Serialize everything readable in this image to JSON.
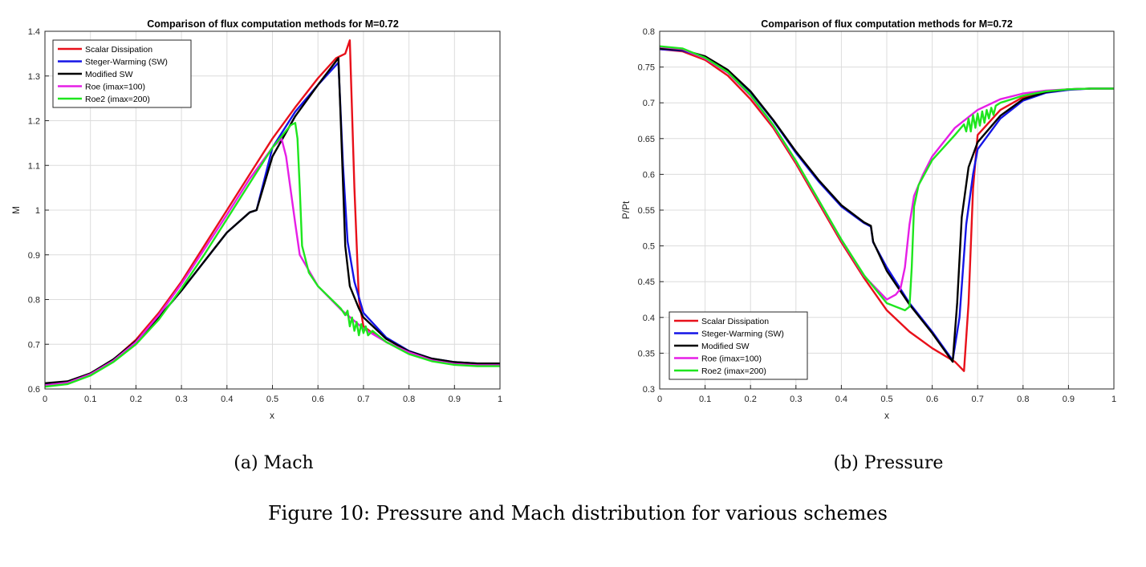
{
  "chart_data": [
    {
      "type": "line",
      "title": "Comparison of flux computation methods for M=0.72",
      "xlabel": "x",
      "ylabel": "M",
      "xlim": [
        0,
        1
      ],
      "ylim": [
        0.6,
        1.4
      ],
      "xticks": [
        "0",
        "0.1",
        "0.2",
        "0.3",
        "0.4",
        "0.5",
        "0.6",
        "0.7",
        "0.8",
        "0.9",
        "1"
      ],
      "yticks": [
        "0.6",
        "0.7",
        "0.8",
        "0.9",
        "1",
        "1.1",
        "1.2",
        "1.3",
        "1.4"
      ],
      "grid": true,
      "legend_position": "top-left",
      "series": [
        {
          "name": "Scalar Dissipation",
          "color": "#e8101a",
          "x": [
            0,
            0.05,
            0.1,
            0.15,
            0.2,
            0.25,
            0.3,
            0.35,
            0.4,
            0.45,
            0.5,
            0.55,
            0.6,
            0.64,
            0.66,
            0.67,
            0.68,
            0.69,
            0.7,
            0.72,
            0.75,
            0.8,
            0.85,
            0.9,
            0.95,
            1.0
          ],
          "y": [
            0.61,
            0.615,
            0.635,
            0.665,
            0.71,
            0.77,
            0.84,
            0.92,
            1.0,
            1.08,
            1.16,
            1.23,
            1.295,
            1.34,
            1.35,
            1.38,
            1.05,
            0.8,
            0.74,
            0.725,
            0.705,
            0.68,
            0.665,
            0.658,
            0.656,
            0.656
          ]
        },
        {
          "name": "Steger-Warming (SW)",
          "color": "#1414e6",
          "x": [
            0,
            0.05,
            0.1,
            0.15,
            0.2,
            0.25,
            0.3,
            0.35,
            0.4,
            0.45,
            0.465,
            0.5,
            0.55,
            0.6,
            0.645,
            0.655,
            0.665,
            0.68,
            0.7,
            0.75,
            0.8,
            0.85,
            0.9,
            0.95,
            1.0
          ],
          "y": [
            0.612,
            0.616,
            0.634,
            0.665,
            0.706,
            0.76,
            0.82,
            0.885,
            0.95,
            0.995,
            1.0,
            1.14,
            1.22,
            1.28,
            1.33,
            1.1,
            0.93,
            0.84,
            0.77,
            0.715,
            0.685,
            0.668,
            0.66,
            0.657,
            0.657
          ]
        },
        {
          "name": "Modified SW",
          "color": "#000000",
          "x": [
            0,
            0.05,
            0.1,
            0.15,
            0.2,
            0.25,
            0.3,
            0.35,
            0.4,
            0.45,
            0.465,
            0.5,
            0.55,
            0.6,
            0.645,
            0.65,
            0.66,
            0.67,
            0.69,
            0.7,
            0.75,
            0.8,
            0.85,
            0.9,
            0.95,
            1.0
          ],
          "y": [
            0.613,
            0.617,
            0.635,
            0.666,
            0.707,
            0.76,
            0.82,
            0.885,
            0.95,
            0.995,
            1.0,
            1.12,
            1.21,
            1.28,
            1.34,
            1.2,
            0.92,
            0.83,
            0.78,
            0.76,
            0.712,
            0.684,
            0.668,
            0.66,
            0.657,
            0.657
          ]
        },
        {
          "name": "Roe (imax=100)",
          "color": "#e61ee6",
          "x": [
            0,
            0.05,
            0.1,
            0.15,
            0.2,
            0.25,
            0.3,
            0.35,
            0.4,
            0.45,
            0.5,
            0.52,
            0.53,
            0.55,
            0.56,
            0.6,
            0.65,
            0.7,
            0.75,
            0.8,
            0.85,
            0.9,
            0.95,
            1.0
          ],
          "y": [
            0.608,
            0.614,
            0.633,
            0.663,
            0.705,
            0.765,
            0.835,
            0.912,
            0.99,
            1.07,
            1.14,
            1.16,
            1.12,
            0.97,
            0.9,
            0.83,
            0.778,
            0.735,
            0.705,
            0.682,
            0.664,
            0.656,
            0.653,
            0.653
          ]
        },
        {
          "name": "Roe2 (imax=200)",
          "color": "#1ee61e",
          "x": [
            0,
            0.05,
            0.1,
            0.15,
            0.2,
            0.25,
            0.3,
            0.35,
            0.4,
            0.45,
            0.5,
            0.54,
            0.55,
            0.555,
            0.56,
            0.565,
            0.58,
            0.6,
            0.65,
            0.66,
            0.665,
            0.67,
            0.675,
            0.68,
            0.685,
            0.69,
            0.695,
            0.7,
            0.705,
            0.71,
            0.72,
            0.75,
            0.8,
            0.85,
            0.9,
            0.95,
            1.0
          ],
          "y": [
            0.605,
            0.611,
            0.63,
            0.66,
            0.7,
            0.755,
            0.825,
            0.9,
            0.98,
            1.06,
            1.14,
            1.19,
            1.195,
            1.16,
            1.05,
            0.92,
            0.86,
            0.83,
            0.78,
            0.765,
            0.775,
            0.74,
            0.76,
            0.73,
            0.75,
            0.72,
            0.745,
            0.725,
            0.74,
            0.72,
            0.73,
            0.705,
            0.678,
            0.662,
            0.654,
            0.651,
            0.651
          ]
        }
      ]
    },
    {
      "type": "line",
      "title": "Comparison of flux computation methods for M=0.72",
      "xlabel": "x",
      "ylabel": "P/Pt",
      "xlim": [
        0,
        1
      ],
      "ylim": [
        0.3,
        0.8
      ],
      "xticks": [
        "0",
        "0.1",
        "0.2",
        "0.3",
        "0.4",
        "0.5",
        "0.6",
        "0.7",
        "0.8",
        "0.9",
        "1"
      ],
      "yticks": [
        "0.3",
        "0.35",
        "0.4",
        "0.45",
        "0.5",
        "0.55",
        "0.6",
        "0.65",
        "0.7",
        "0.75",
        "0.8"
      ],
      "grid": true,
      "legend_position": "bottom-left",
      "series": [
        {
          "name": "Scalar Dissipation",
          "color": "#e8101a",
          "x": [
            0,
            0.05,
            0.1,
            0.15,
            0.2,
            0.25,
            0.3,
            0.35,
            0.4,
            0.45,
            0.5,
            0.55,
            0.6,
            0.65,
            0.67,
            0.68,
            0.69,
            0.7,
            0.75,
            0.8,
            0.85,
            0.9,
            0.95,
            1.0
          ],
          "y": [
            0.775,
            0.772,
            0.76,
            0.738,
            0.705,
            0.665,
            0.615,
            0.56,
            0.505,
            0.455,
            0.41,
            0.38,
            0.357,
            0.338,
            0.325,
            0.42,
            0.58,
            0.655,
            0.69,
            0.708,
            0.716,
            0.719,
            0.72,
            0.72
          ]
        },
        {
          "name": "Steger-Warming (SW)",
          "color": "#1414e6",
          "x": [
            0,
            0.05,
            0.1,
            0.15,
            0.2,
            0.25,
            0.3,
            0.35,
            0.4,
            0.45,
            0.465,
            0.47,
            0.5,
            0.55,
            0.6,
            0.645,
            0.66,
            0.675,
            0.69,
            0.7,
            0.75,
            0.8,
            0.85,
            0.9,
            0.95,
            1.0
          ],
          "y": [
            0.775,
            0.773,
            0.764,
            0.745,
            0.715,
            0.675,
            0.63,
            0.59,
            0.555,
            0.532,
            0.527,
            0.505,
            0.47,
            0.42,
            0.38,
            0.34,
            0.4,
            0.53,
            0.6,
            0.635,
            0.678,
            0.703,
            0.714,
            0.718,
            0.72,
            0.72
          ]
        },
        {
          "name": "Modified SW",
          "color": "#000000",
          "x": [
            0,
            0.05,
            0.1,
            0.15,
            0.2,
            0.25,
            0.3,
            0.35,
            0.4,
            0.45,
            0.465,
            0.47,
            0.5,
            0.55,
            0.6,
            0.645,
            0.655,
            0.665,
            0.68,
            0.7,
            0.75,
            0.8,
            0.85,
            0.9,
            0.95,
            1.0
          ],
          "y": [
            0.776,
            0.774,
            0.765,
            0.746,
            0.716,
            0.676,
            0.632,
            0.592,
            0.557,
            0.533,
            0.528,
            0.506,
            0.465,
            0.418,
            0.378,
            0.338,
            0.42,
            0.54,
            0.61,
            0.645,
            0.682,
            0.705,
            0.715,
            0.719,
            0.72,
            0.72
          ]
        },
        {
          "name": "Roe (imax=100)",
          "color": "#e61ee6",
          "x": [
            0,
            0.05,
            0.1,
            0.15,
            0.2,
            0.25,
            0.3,
            0.35,
            0.4,
            0.45,
            0.5,
            0.52,
            0.53,
            0.54,
            0.55,
            0.56,
            0.58,
            0.6,
            0.65,
            0.7,
            0.75,
            0.8,
            0.85,
            0.9,
            0.95,
            1.0
          ],
          "y": [
            0.778,
            0.775,
            0.762,
            0.742,
            0.71,
            0.668,
            0.618,
            0.563,
            0.508,
            0.458,
            0.425,
            0.432,
            0.44,
            0.47,
            0.53,
            0.57,
            0.6,
            0.625,
            0.665,
            0.69,
            0.705,
            0.713,
            0.717,
            0.719,
            0.72,
            0.72
          ]
        },
        {
          "name": "Roe2 (imax=200)",
          "color": "#1ee61e",
          "x": [
            0,
            0.05,
            0.1,
            0.15,
            0.2,
            0.25,
            0.3,
            0.35,
            0.4,
            0.45,
            0.5,
            0.54,
            0.55,
            0.555,
            0.56,
            0.57,
            0.6,
            0.65,
            0.67,
            0.675,
            0.68,
            0.685,
            0.69,
            0.695,
            0.7,
            0.705,
            0.71,
            0.715,
            0.72,
            0.725,
            0.73,
            0.735,
            0.74,
            0.75,
            0.8,
            0.85,
            0.9,
            0.95,
            1.0
          ],
          "y": [
            0.779,
            0.776,
            0.763,
            0.743,
            0.711,
            0.669,
            0.619,
            0.564,
            0.509,
            0.459,
            0.42,
            0.41,
            0.415,
            0.47,
            0.555,
            0.585,
            0.62,
            0.655,
            0.67,
            0.66,
            0.678,
            0.66,
            0.683,
            0.665,
            0.685,
            0.668,
            0.688,
            0.672,
            0.69,
            0.678,
            0.693,
            0.683,
            0.696,
            0.7,
            0.71,
            0.716,
            0.719,
            0.72,
            0.72
          ]
        }
      ]
    }
  ],
  "captions": {
    "left": "(a) Mach",
    "right": "(b) Pressure",
    "figure": "Figure 10: Pressure and Mach distribution for various schemes"
  }
}
